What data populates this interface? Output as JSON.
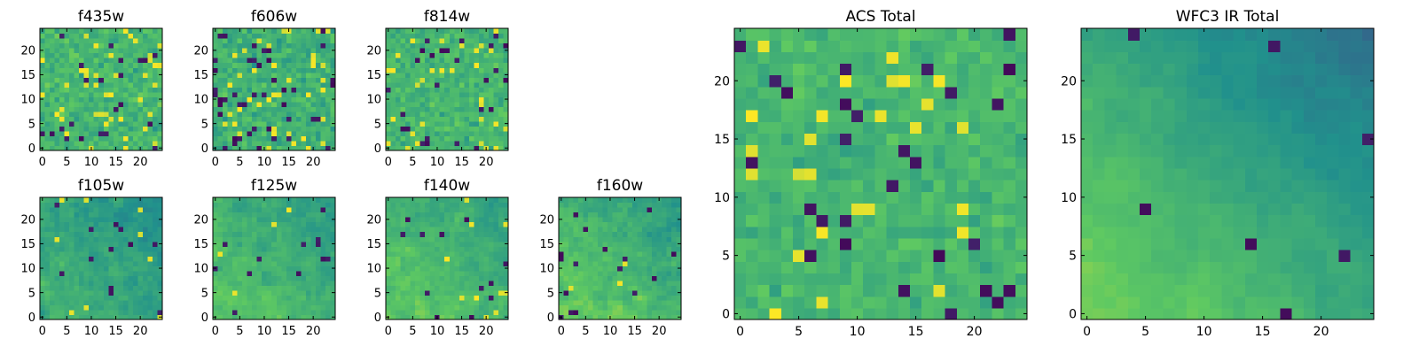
{
  "colormap": [
    "#440154",
    "#3b528b",
    "#21918c",
    "#5ec962",
    "#fde725"
  ],
  "figure": {
    "background": "#ffffff",
    "frame_color": "#000000"
  },
  "chart_data": [
    {
      "id": "f435w",
      "type": "heatmap",
      "title": "f435w",
      "grid_size": 25,
      "xlim": [
        -0.5,
        24.5
      ],
      "ylim": [
        -0.5,
        24.5
      ],
      "xticks": [
        0,
        5,
        10,
        15,
        20
      ],
      "yticks": [
        0,
        5,
        10,
        15,
        20
      ],
      "texture": "noise",
      "seed": 11,
      "base": 0.66,
      "spread": 0.16,
      "dark_rate": 0.06,
      "bright_rate": 0.07,
      "smooth": 0,
      "gradient": 0
    },
    {
      "id": "f606w",
      "type": "heatmap",
      "title": "f606w",
      "grid_size": 25,
      "xlim": [
        -0.5,
        24.5
      ],
      "ylim": [
        -0.5,
        24.5
      ],
      "xticks": [
        0,
        5,
        10,
        15,
        20
      ],
      "yticks": [
        0,
        5,
        10,
        15,
        20
      ],
      "texture": "noise",
      "seed": 23,
      "base": 0.64,
      "spread": 0.17,
      "dark_rate": 0.06,
      "bright_rate": 0.06,
      "smooth": 0,
      "gradient": 0
    },
    {
      "id": "f814w",
      "type": "heatmap",
      "title": "f814w",
      "grid_size": 25,
      "xlim": [
        -0.5,
        24.5
      ],
      "ylim": [
        -0.5,
        24.5
      ],
      "xticks": [
        0,
        5,
        10,
        15,
        20
      ],
      "yticks": [
        0,
        5,
        10,
        15,
        20
      ],
      "texture": "noise",
      "seed": 37,
      "base": 0.66,
      "spread": 0.15,
      "dark_rate": 0.05,
      "bright_rate": 0.05,
      "smooth": 0,
      "gradient": 0
    },
    {
      "id": "f105w",
      "type": "heatmap",
      "title": "f105w",
      "grid_size": 25,
      "xlim": [
        -0.5,
        24.5
      ],
      "ylim": [
        -0.5,
        24.5
      ],
      "xticks": [
        0,
        5,
        10,
        15,
        20
      ],
      "yticks": [
        0,
        5,
        10,
        15,
        20
      ],
      "texture": "smooth",
      "seed": 51,
      "base": 0.58,
      "spread": 0.22,
      "dark_rate": 0.02,
      "bright_rate": 0.01,
      "smooth": 1,
      "gradient": 0.18
    },
    {
      "id": "f125w",
      "type": "heatmap",
      "title": "f125w",
      "grid_size": 25,
      "xlim": [
        -0.5,
        24.5
      ],
      "ylim": [
        -0.5,
        24.5
      ],
      "xticks": [
        0,
        5,
        10,
        15,
        20
      ],
      "yticks": [
        0,
        5,
        10,
        15,
        20
      ],
      "texture": "smooth",
      "seed": 67,
      "base": 0.64,
      "spread": 0.22,
      "dark_rate": 0.02,
      "bright_rate": 0.01,
      "smooth": 1,
      "gradient": 0.22
    },
    {
      "id": "f140w",
      "type": "heatmap",
      "title": "f140w",
      "grid_size": 25,
      "xlim": [
        -0.5,
        24.5
      ],
      "ylim": [
        -0.5,
        24.5
      ],
      "xticks": [
        0,
        5,
        10,
        15,
        20
      ],
      "yticks": [
        0,
        5,
        10,
        15,
        20
      ],
      "texture": "smooth",
      "seed": 79,
      "base": 0.66,
      "spread": 0.22,
      "dark_rate": 0.02,
      "bright_rate": 0.01,
      "smooth": 1,
      "gradient": 0.2
    },
    {
      "id": "f160w",
      "type": "heatmap",
      "title": "f160w",
      "grid_size": 25,
      "xlim": [
        -0.5,
        24.5
      ],
      "ylim": [
        -0.5,
        24.5
      ],
      "xticks": [
        0,
        5,
        10,
        15,
        20
      ],
      "yticks": [
        0,
        5,
        10,
        15,
        20
      ],
      "texture": "smooth",
      "seed": 93,
      "base": 0.66,
      "spread": 0.24,
      "dark_rate": 0.03,
      "bright_rate": 0.01,
      "smooth": 1,
      "gradient": 0.26
    },
    {
      "id": "acs_total",
      "type": "heatmap",
      "title": "ACS Total",
      "grid_size": 25,
      "xlim": [
        -0.5,
        24.5
      ],
      "ylim": [
        -0.5,
        24.5
      ],
      "xticks": [
        0,
        5,
        10,
        15,
        20
      ],
      "yticks": [
        0,
        5,
        10,
        15,
        20
      ],
      "texture": "noise",
      "seed": 107,
      "base": 0.66,
      "spread": 0.13,
      "dark_rate": 0.04,
      "bright_rate": 0.05,
      "smooth": 0,
      "gradient": 0
    },
    {
      "id": "wfc3_ir_total",
      "type": "heatmap",
      "title": "WFC3 IR Total",
      "grid_size": 25,
      "xlim": [
        -0.5,
        24.5
      ],
      "ylim": [
        -0.5,
        24.5
      ],
      "xticks": [
        0,
        5,
        10,
        15,
        20
      ],
      "yticks": [
        0,
        5,
        10,
        15,
        20
      ],
      "texture": "smooth",
      "seed": 131,
      "base": 0.6,
      "spread": 0.16,
      "dark_rate": 0.01,
      "bright_rate": 0.0,
      "smooth": 2,
      "gradient": 0.42
    }
  ]
}
